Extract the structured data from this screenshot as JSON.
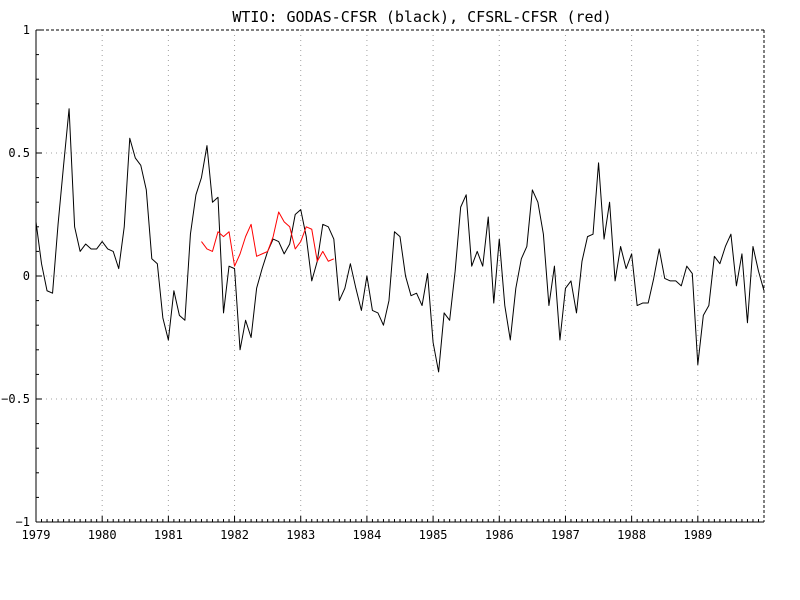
{
  "chart_data": {
    "type": "line",
    "title": "WTIO: GODAS-CFSR (black), CFSRL-CFSR (red)",
    "xlabel": "",
    "ylabel": "",
    "xlim": [
      1979.0,
      1990.0
    ],
    "ylim": [
      -1,
      1
    ],
    "x_ticks": [
      1979,
      1980,
      1981,
      1982,
      1983,
      1984,
      1985,
      1986,
      1987,
      1988,
      1989
    ],
    "x_tick_labels": [
      "1979",
      "1980",
      "1981",
      "1982",
      "1983",
      "1984",
      "1985",
      "1986",
      "1987",
      "1988",
      "1989"
    ],
    "y_ticks": [
      -1,
      -0.5,
      0,
      0.5,
      1
    ],
    "y_tick_labels": [
      "−1",
      "−0.5",
      "0",
      "0.5",
      "1"
    ],
    "grid": true,
    "legend": "none (series colors given in title)",
    "series": [
      {
        "color": "#000000",
        "x_start": 1979.0,
        "x_step_months": 1,
        "values": [
          0.22,
          0.05,
          -0.06,
          -0.07,
          0.21,
          0.45,
          0.68,
          0.2,
          0.1,
          0.13,
          0.11,
          0.11,
          0.14,
          0.11,
          0.1,
          0.03,
          0.2,
          0.56,
          0.48,
          0.45,
          0.35,
          0.07,
          0.05,
          -0.17,
          -0.26,
          -0.06,
          -0.16,
          -0.18,
          0.17,
          0.33,
          0.4,
          0.53,
          0.3,
          0.32,
          -0.15,
          0.04,
          0.03,
          -0.3,
          -0.18,
          -0.25,
          -0.05,
          0.03,
          0.1,
          0.15,
          0.14,
          0.09,
          0.13,
          0.25,
          0.27,
          0.16,
          -0.02,
          0.06,
          0.21,
          0.2,
          0.15,
          -0.1,
          -0.05,
          0.05,
          -0.05,
          -0.14,
          0.0,
          -0.14,
          -0.15,
          -0.2,
          -0.1,
          0.18,
          0.16,
          0.0,
          -0.08,
          -0.07,
          -0.12,
          0.01,
          -0.27,
          -0.39,
          -0.15,
          -0.18,
          0.02,
          0.28,
          0.33,
          0.04,
          0.1,
          0.04,
          0.24,
          -0.11,
          0.15,
          -0.12,
          -0.26,
          -0.05,
          0.07,
          0.12,
          0.35,
          0.3,
          0.17,
          -0.12,
          0.04,
          -0.26,
          -0.05,
          -0.02,
          -0.15,
          0.06,
          0.16,
          0.17,
          0.46,
          0.15,
          0.3,
          -0.02,
          0.12,
          0.03,
          0.09,
          -0.12,
          -0.11,
          -0.11,
          -0.01,
          0.11,
          -0.01,
          -0.02,
          -0.02,
          -0.04,
          0.04,
          0.01,
          -0.36,
          -0.16,
          -0.12,
          0.08,
          0.05,
          0.12,
          0.17,
          -0.04,
          0.09,
          -0.19,
          0.12,
          0.02,
          -0.06
        ]
      },
      {
        "color": "#ff0000",
        "x_start": 1981.5,
        "x_step_months": 1,
        "values": [
          0.14,
          0.11,
          0.1,
          0.18,
          0.16,
          0.18,
          0.04,
          0.09,
          0.16,
          0.21,
          0.08,
          0.09,
          0.1,
          0.16,
          0.26,
          0.22,
          0.2,
          0.11,
          0.14,
          0.2,
          0.19,
          0.06,
          0.1,
          0.06,
          0.07
        ]
      }
    ]
  }
}
